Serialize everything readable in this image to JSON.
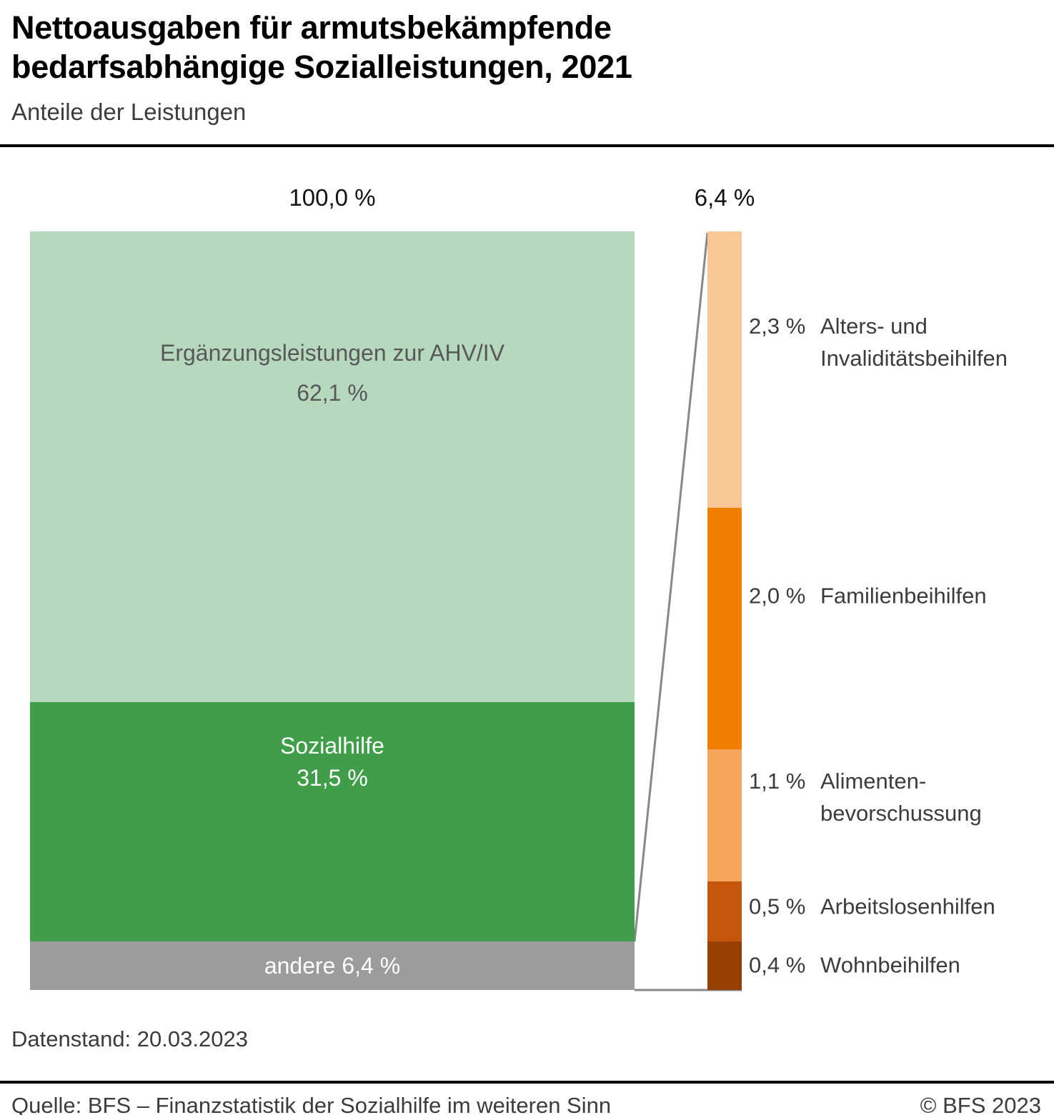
{
  "header": {
    "title_line1": "Nettoausgaben für armutsbekämpfende",
    "title_line2": "bedarfsabhängige Sozialleistungen, 2021",
    "subtitle": "Anteile der Leistungen"
  },
  "chart_data": {
    "type": "bar",
    "subtype": "stacked-bar-with-breakout",
    "title": "Nettoausgaben für armutsbekämpfende bedarfsabhängige Sozialleistungen, 2021",
    "subtitle": "Anteile der Leistungen",
    "unit": "%",
    "main_bar": {
      "total_label": "100,0 %",
      "total_value": 100.0,
      "segments": [
        {
          "name": "Ergänzungsleistungen zur AHV/IV",
          "value": 62.1,
          "display_lines": [
            "Ergänzungsleistungen zur AHV/IV",
            "62,1 %"
          ],
          "color": "#b6d8bd",
          "text_color": "#58585a"
        },
        {
          "name": "Sozialhilfe",
          "value": 31.5,
          "display_lines": [
            "Sozialhilfe",
            "31,5 %"
          ],
          "color": "#409e4a",
          "text_color": "#ffffff"
        },
        {
          "name": "andere",
          "value": 6.4,
          "display_lines": [
            "andere 6,4 %"
          ],
          "color": "#9c9c9c",
          "text_color": "#ffffff"
        }
      ]
    },
    "detail_bar": {
      "total_label": "6,4 %",
      "total_value": 6.4,
      "segments": [
        {
          "name": "Alters- und Invaliditätsbeihilfen",
          "value": 2.3,
          "pct_label": "2,3 %",
          "label_lines": [
            "Alters- und",
            "Invaliditätsbeihilfen"
          ],
          "color": "#f9c795"
        },
        {
          "name": "Familienbeihilfen",
          "value": 2.0,
          "pct_label": "2,0 %",
          "label_lines": [
            "Familienbeihilfen"
          ],
          "color": "#f07e00"
        },
        {
          "name": "Alimentenbevorschussung",
          "value": 1.1,
          "pct_label": "1,1 %",
          "label_lines": [
            "Alimenten-",
            "bevorschussung"
          ],
          "color": "#f5a65c"
        },
        {
          "name": "Arbeitslosenhilfen",
          "value": 0.5,
          "pct_label": "0,5 %",
          "label_lines": [
            "Arbeitslosenhilfen"
          ],
          "color": "#c4570c"
        },
        {
          "name": "Wohnbeihilfen",
          "value": 0.4,
          "pct_label": "0,4 %",
          "label_lines": [
            "Wohnbeihilfen"
          ],
          "color": "#963f03"
        }
      ]
    },
    "connector_color": "#878787"
  },
  "footer": {
    "data_status": "Datenstand: 20.03.2023",
    "source": "Quelle: BFS – Finanzstatistik der Sozialhilfe im weiteren Sinn",
    "copyright": "© BFS 2023"
  }
}
